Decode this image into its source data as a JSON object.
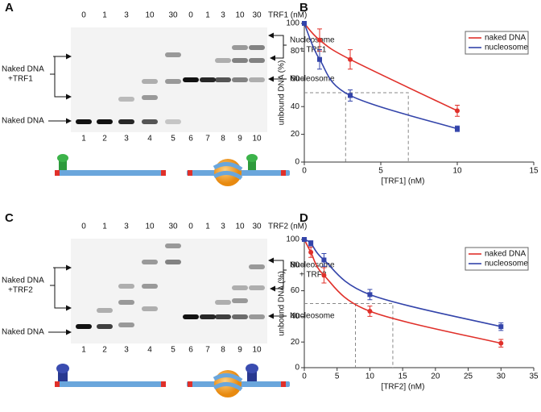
{
  "panel_labels": [
    "A",
    "B",
    "C",
    "D"
  ],
  "gels": [
    {
      "concentrations": [
        "0",
        "1",
        "3",
        "10",
        "30"
      ],
      "unit": "TRF1 (nM)",
      "lanes": [
        "1",
        "2",
        "3",
        "4",
        "5",
        "6",
        "7",
        "8",
        "9",
        "10"
      ],
      "left_upper": [
        "Naked DNA",
        "+TRF1"
      ],
      "left_lower": "Naked DNA",
      "right_upper": [
        "Nucleosome",
        "+ TRF1"
      ],
      "right_lower": "Nucleosome"
    },
    {
      "concentrations": [
        "0",
        "1",
        "3",
        "10",
        "30"
      ],
      "unit": "TRF2 (nM)",
      "lanes": [
        "1",
        "2",
        "3",
        "4",
        "5",
        "6",
        "7",
        "8",
        "9",
        "10"
      ],
      "left_upper": [
        "Naked DNA",
        "+TRF2"
      ],
      "left_lower": "Naked DNA",
      "right_upper": [
        "Nucleosome",
        "+ TRF2"
      ],
      "right_lower": "Nucleosome"
    }
  ],
  "chart_data": [
    {
      "type": "line",
      "xlabel": "[TRF1] (nM)",
      "ylabel": "unbound DNA (%)",
      "x": [
        0,
        1,
        3,
        10
      ],
      "xlim": [
        0,
        15
      ],
      "xticks": [
        0,
        5,
        10,
        15
      ],
      "ylim": [
        0,
        100
      ],
      "yticks": [
        0,
        20,
        40,
        60,
        80,
        100
      ],
      "legend": "upper right",
      "series": [
        {
          "name": "naked DNA",
          "color": "#e0302a",
          "marker": "circle",
          "values": [
            100,
            88,
            74,
            37
          ],
          "errors": [
            0,
            8,
            7,
            4
          ]
        },
        {
          "name": "nucleosome",
          "color": "#3344aa",
          "marker": "square",
          "values": [
            100,
            74,
            48,
            24
          ],
          "errors": [
            0,
            7,
            4,
            2
          ]
        }
      ],
      "guides": [
        {
          "x": 6.8,
          "y": 50
        },
        {
          "x": 2.7,
          "y": 50
        }
      ]
    },
    {
      "type": "line",
      "xlabel": "[TRF2] (nM)",
      "ylabel": "unbound DNA (%)",
      "x": [
        0,
        1,
        3,
        10,
        30
      ],
      "xlim": [
        0,
        35
      ],
      "xticks": [
        0,
        5,
        10,
        15,
        20,
        25,
        30,
        35
      ],
      "ylim": [
        0,
        100
      ],
      "yticks": [
        0,
        20,
        40,
        60,
        80,
        100
      ],
      "legend": "upper right",
      "series": [
        {
          "name": "naked DNA",
          "color": "#e0302a",
          "marker": "circle",
          "values": [
            100,
            90,
            72,
            44,
            19
          ],
          "errors": [
            0,
            4,
            6,
            4,
            3
          ]
        },
        {
          "name": "nucleosome",
          "color": "#3344aa",
          "marker": "square",
          "values": [
            100,
            97,
            84,
            57,
            32
          ],
          "errors": [
            0,
            2,
            5,
            4,
            3
          ]
        }
      ],
      "guides": [
        {
          "x": 7.8,
          "y": 50
        },
        {
          "x": 13.5,
          "y": 50
        }
      ]
    }
  ]
}
